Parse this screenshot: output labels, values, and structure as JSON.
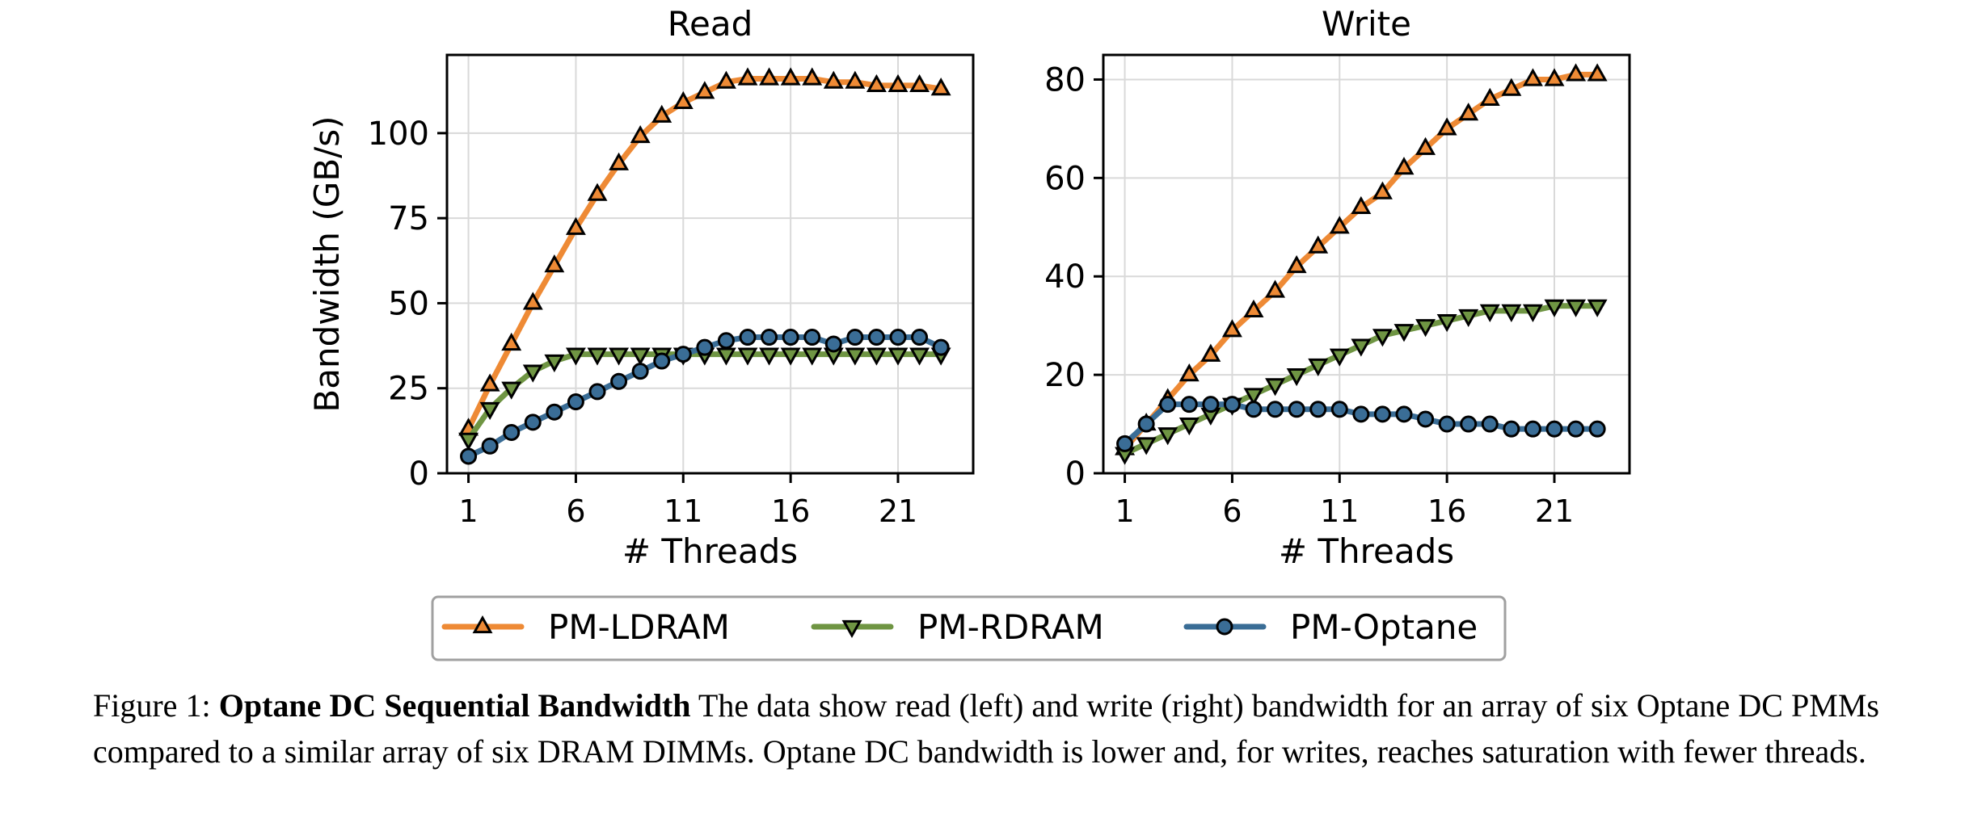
{
  "chart_data": [
    {
      "type": "line",
      "title": "Read",
      "xlabel": "# Threads",
      "ylabel": "Bandwidth (GB/s)",
      "xlim": [
        0,
        24.5
      ],
      "ylim": [
        0,
        123
      ],
      "xticks": [
        1,
        6,
        11,
        16,
        21
      ],
      "yticks": [
        0,
        25,
        50,
        75,
        100
      ],
      "grid": true,
      "x": [
        1,
        2,
        3,
        4,
        5,
        6,
        7,
        8,
        9,
        10,
        11,
        12,
        13,
        14,
        15,
        16,
        17,
        18,
        19,
        20,
        21,
        22,
        23
      ],
      "series": [
        {
          "name": "PM-LDRAM",
          "values": [
            13,
            26,
            38,
            50,
            61,
            72,
            82,
            91,
            99,
            105,
            109,
            112,
            115,
            116,
            116,
            116,
            116,
            115,
            115,
            114,
            114,
            114,
            113
          ]
        },
        {
          "name": "PM-RDRAM",
          "values": [
            10,
            19,
            25,
            30,
            33,
            35,
            35,
            35,
            35,
            35,
            35,
            35,
            35,
            35,
            35,
            35,
            35,
            35,
            35,
            35,
            35,
            35,
            35
          ]
        },
        {
          "name": "PM-Optane",
          "values": [
            5,
            8,
            12,
            15,
            18,
            21,
            24,
            27,
            30,
            33,
            35,
            37,
            39,
            40,
            40,
            40,
            40,
            38,
            40,
            40,
            40,
            40,
            37
          ]
        }
      ]
    },
    {
      "type": "line",
      "title": "Write",
      "xlabel": "# Threads",
      "ylabel": "",
      "xlim": [
        0,
        24.5
      ],
      "ylim": [
        0,
        85
      ],
      "xticks": [
        1,
        6,
        11,
        16,
        21
      ],
      "yticks": [
        0,
        20,
        40,
        60,
        80
      ],
      "grid": true,
      "x": [
        1,
        2,
        3,
        4,
        5,
        6,
        7,
        8,
        9,
        10,
        11,
        12,
        13,
        14,
        15,
        16,
        17,
        18,
        19,
        20,
        21,
        22,
        23
      ],
      "series": [
        {
          "name": "PM-LDRAM",
          "values": [
            5,
            10,
            15,
            20,
            24,
            29,
            33,
            37,
            42,
            46,
            50,
            54,
            57,
            62,
            66,
            70,
            73,
            76,
            78,
            80,
            80,
            81,
            81
          ]
        },
        {
          "name": "PM-RDRAM",
          "values": [
            4,
            6,
            8,
            10,
            12,
            14,
            16,
            18,
            20,
            22,
            24,
            26,
            28,
            29,
            30,
            31,
            32,
            33,
            33,
            33,
            34,
            34,
            34
          ]
        },
        {
          "name": "PM-Optane",
          "values": [
            6,
            10,
            14,
            14,
            14,
            14,
            13,
            13,
            13,
            13,
            13,
            12,
            12,
            12,
            11,
            10,
            10,
            10,
            9,
            9,
            9,
            9,
            9
          ]
        }
      ]
    }
  ],
  "legend": {
    "placement": "bottom-center",
    "items": [
      {
        "name": "PM-LDRAM",
        "marker": "triangle-up"
      },
      {
        "name": "PM-RDRAM",
        "marker": "triangle-down"
      },
      {
        "name": "PM-Optane",
        "marker": "circle"
      }
    ]
  },
  "colors": {
    "PM-LDRAM": "#ee8a35",
    "PM-RDRAM": "#6f9543",
    "PM-Optane": "#3a6d96",
    "grid": "#d9d9d9",
    "legend_border": "#a0a0a0"
  },
  "caption": {
    "prefix": "Figure 1: ",
    "bold": "Optane DC Sequential Bandwidth",
    "text": " The data show read (left) and write (right) bandwidth for an array of six Optane DC PMMs compared to a similar array of six DRAM DIMMs. Optane DC bandwidth is lower and, for writes, reaches saturation with fewer threads."
  }
}
